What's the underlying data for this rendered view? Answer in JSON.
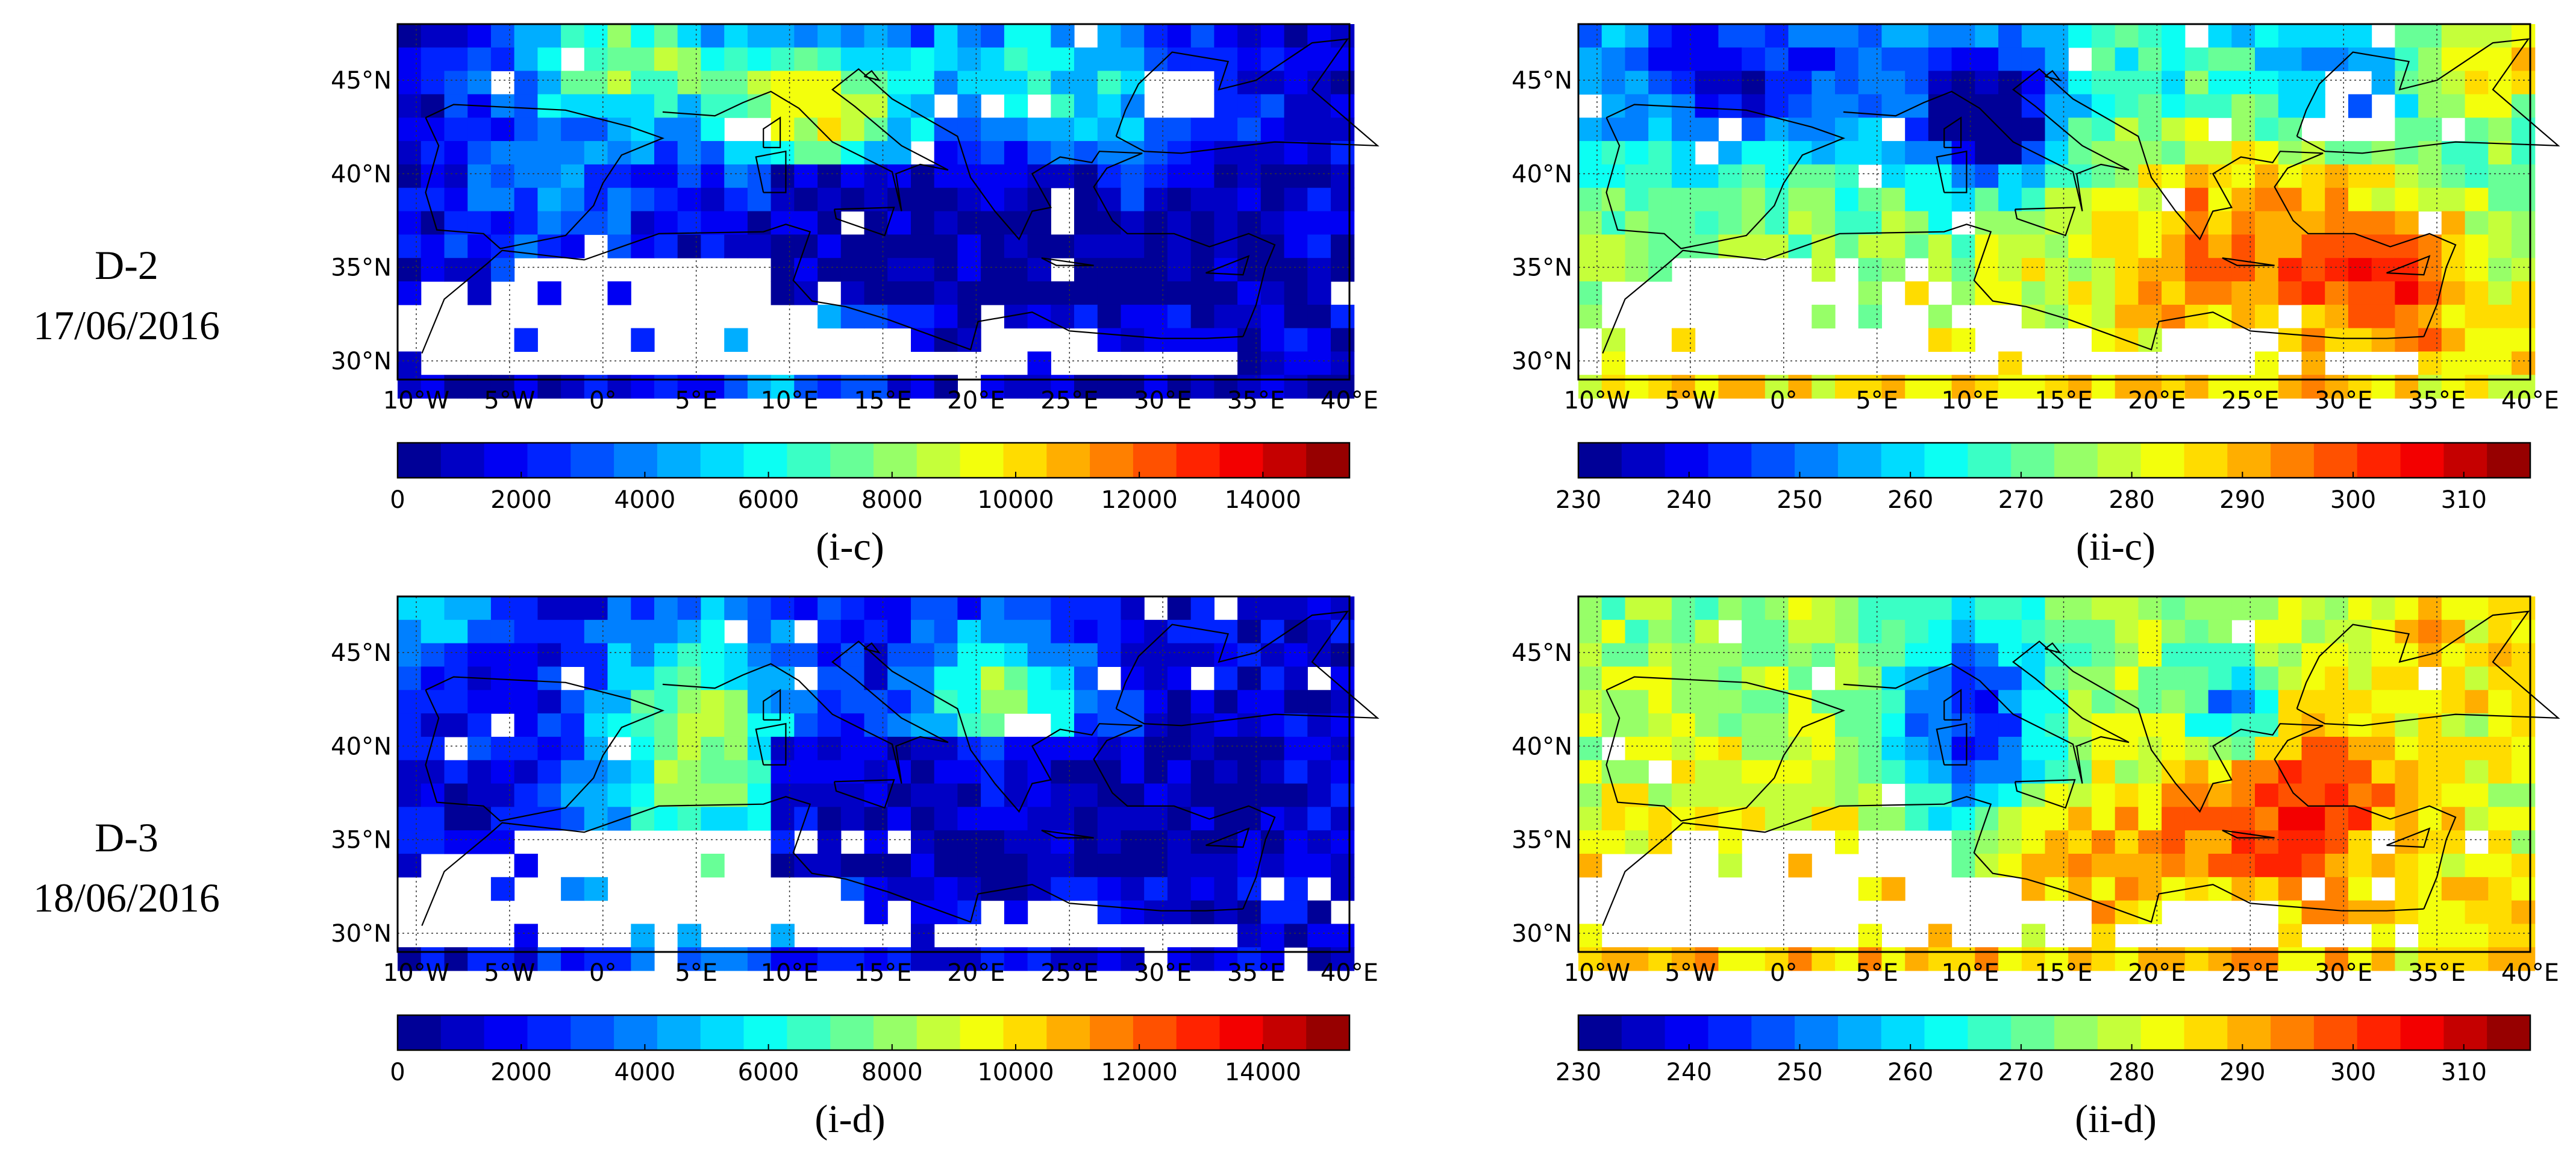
{
  "rows": [
    {
      "label_line1": "D-2",
      "label_line2": "17/06/2016"
    },
    {
      "label_line1": "D-3",
      "label_line2": "18/06/2016"
    }
  ],
  "chart_data": [
    {
      "type": "heatmap",
      "id": "i-c",
      "caption": "(i-c)",
      "lat_ticks": [
        "45°N",
        "40°N",
        "35°N",
        "30°N"
      ],
      "lon_ticks": [
        "10°W",
        "5°W",
        "0°",
        "5°E",
        "10°E",
        "15°E",
        "20°E",
        "25°E",
        "30°E",
        "35°E",
        "40°E"
      ],
      "colorbar": {
        "min": 0,
        "max": 15400,
        "ticks": [
          "0",
          "2000",
          "4000",
          "6000",
          "8000",
          "10000",
          "12000",
          "14000"
        ],
        "tick_values": [
          0,
          2000,
          4000,
          6000,
          8000,
          10000,
          12000,
          14000
        ],
        "colormap": "jet"
      }
    },
    {
      "type": "heatmap",
      "id": "ii-c",
      "caption": "(ii-c)",
      "lat_ticks": [
        "45°N",
        "40°N",
        "35°N",
        "30°N"
      ],
      "lon_ticks": [
        "10°W",
        "5°W",
        "0°",
        "5°E",
        "10°E",
        "15°E",
        "20°E",
        "25°E",
        "30°E",
        "35°E",
        "40°E"
      ],
      "colorbar": {
        "min": 230,
        "max": 316,
        "ticks": [
          "230",
          "240",
          "250",
          "260",
          "270",
          "280",
          "290",
          "300",
          "310"
        ],
        "tick_values": [
          230,
          240,
          250,
          260,
          270,
          280,
          290,
          300,
          310
        ],
        "colormap": "jet"
      }
    },
    {
      "type": "heatmap",
      "id": "i-d",
      "caption": "(i-d)",
      "lat_ticks": [
        "45°N",
        "40°N",
        "35°N",
        "30°N"
      ],
      "lon_ticks": [
        "10°W",
        "5°W",
        "0°",
        "5°E",
        "10°E",
        "15°E",
        "20°E",
        "25°E",
        "30°E",
        "35°E",
        "40°E"
      ],
      "colorbar": {
        "min": 0,
        "max": 15400,
        "ticks": [
          "0",
          "2000",
          "4000",
          "6000",
          "8000",
          "10000",
          "12000",
          "14000"
        ],
        "tick_values": [
          0,
          2000,
          4000,
          6000,
          8000,
          10000,
          12000,
          14000
        ],
        "colormap": "jet"
      }
    },
    {
      "type": "heatmap",
      "id": "ii-d",
      "caption": "(ii-d)",
      "lat_ticks": [
        "45°N",
        "40°N",
        "35°N",
        "30°N"
      ],
      "lon_ticks": [
        "10°W",
        "5°W",
        "0°",
        "5°E",
        "10°E",
        "15°E",
        "20°E",
        "25°E",
        "30°E",
        "35°E",
        "40°E"
      ],
      "colorbar": {
        "min": 230,
        "max": 316,
        "ticks": [
          "230",
          "240",
          "250",
          "260",
          "270",
          "280",
          "290",
          "300",
          "310"
        ],
        "tick_values": [
          230,
          240,
          250,
          260,
          270,
          280,
          290,
          300,
          310
        ],
        "colormap": "jet"
      }
    }
  ]
}
